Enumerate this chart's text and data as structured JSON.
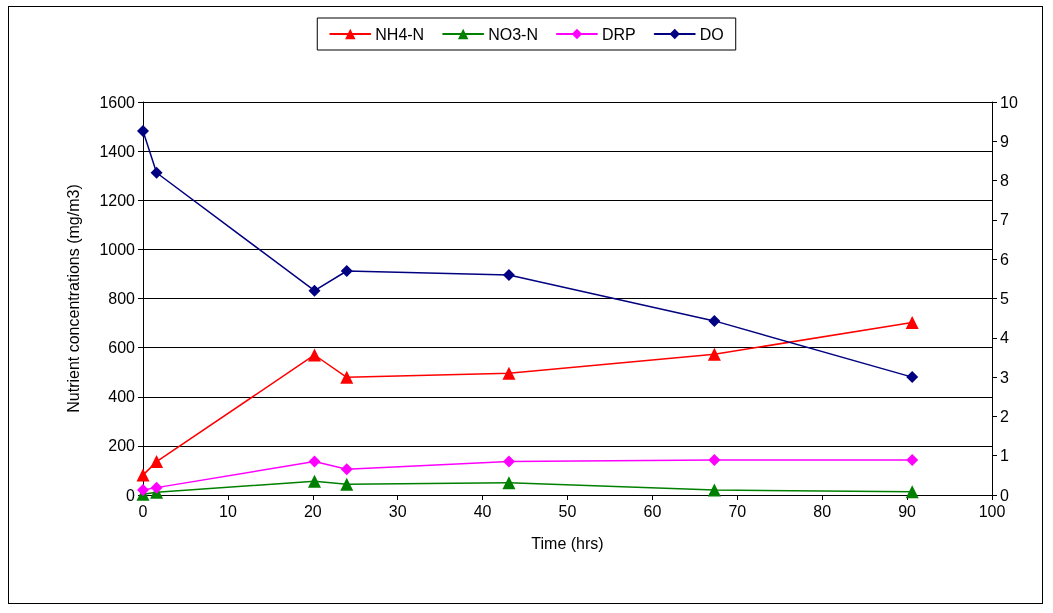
{
  "chart_data": {
    "type": "line",
    "xlabel": "Time (hrs)",
    "ylabel": "Nutrient concentrations (mg/m3)",
    "x": [
      0,
      1.6,
      20.2,
      24.0,
      43.1,
      67.3,
      90.6
    ],
    "xlim": [
      0,
      100
    ],
    "xticks": [
      0,
      10,
      20,
      30,
      40,
      50,
      60,
      70,
      80,
      90,
      100
    ],
    "ylim": [
      0,
      1600
    ],
    "yticks": [
      0,
      200,
      400,
      600,
      800,
      1000,
      1200,
      1400,
      1600
    ],
    "y2lim": [
      0,
      10
    ],
    "y2ticks": [
      0,
      1,
      2,
      3,
      4,
      5,
      6,
      7,
      8,
      9,
      10
    ],
    "grid": "y",
    "legend": "top",
    "line_style": "solid",
    "series": [
      {
        "name": "NH4-N",
        "color": "#ff0000",
        "marker": "triangle",
        "values": [
          81,
          136,
          570,
          479,
          496,
          573,
          702
        ]
      },
      {
        "name": "NO3-N",
        "color": "#008000",
        "marker": "triangle",
        "values": [
          3,
          11,
          56,
          44,
          50,
          20,
          13
        ]
      },
      {
        "name": "DRP",
        "color": "#ff00ff",
        "marker": "diamond",
        "values": [
          20,
          30,
          136,
          105,
          136,
          143,
          143
        ]
      },
      {
        "name": "DO",
        "color": "#000080",
        "marker": "diamond",
        "axis": "y2",
        "values": [
          9.26,
          8.2,
          5.2,
          5.7,
          5.6,
          4.43,
          3.0
        ]
      }
    ]
  }
}
